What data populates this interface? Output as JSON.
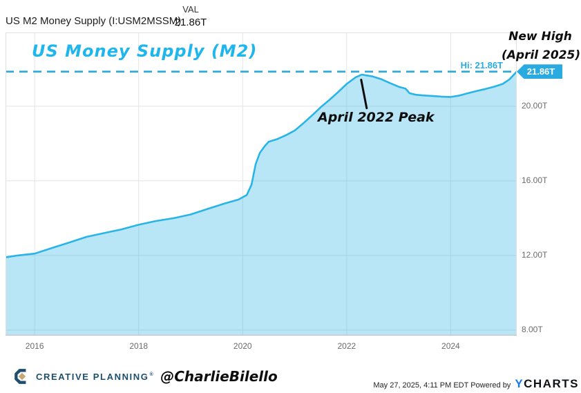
{
  "header": {
    "series_name": "US M2 Money Supply (I:USM2MSSM)",
    "val_label": "VAL",
    "val_value": "21.86T"
  },
  "annotations": {
    "title": "US Money Supply (M2)",
    "new_high_line1": "New High",
    "new_high_line2": "(April 2025)",
    "peak_label": "April 2022 Peak",
    "hi_label": "Hi: 21.86T",
    "hi_badge": "21.86T"
  },
  "footer": {
    "brand": "CREATIVE PLANNING",
    "trademark": "®",
    "handle": "@CharlieBilello",
    "timestamp": "May 27, 2025, 4:11 PM EDT",
    "powered_by": "Powered by",
    "ycharts_y": "Y",
    "ycharts_rest": "CHARTS",
    "logo_icon": "creative-planning-c-diamond"
  },
  "colors": {
    "accent_cyan": "#29b4e8",
    "title_cyan": "#1fb6ed",
    "badge_bg": "#29abe2",
    "area_fill": "rgba(41,180,232,0.33)",
    "grid": "#e4e4e4",
    "plot_border": "#e0e0e0",
    "plot_border_bottom": "#c6c6c6",
    "axis_text": "#6b6b6b",
    "brand_navy": "#1d4e6e",
    "brand_gold": "#c3a878",
    "ycharts_blue": "#1479e8"
  },
  "chart_data": {
    "type": "area",
    "title": "US Money Supply (M2)",
    "series_name": "US M2 Money Supply",
    "unit": "trillions USD",
    "x_ticks": [
      2016,
      2018,
      2020,
      2022,
      2024
    ],
    "y_ticks": [
      {
        "value": 20,
        "label": "20.00T"
      },
      {
        "value": 16,
        "label": "16.00T"
      },
      {
        "value": 12,
        "label": "12.00T"
      },
      {
        "value": 8,
        "label": "8.00T"
      }
    ],
    "x_range": [
      2015.44,
      2025.27
    ],
    "y_range": [
      7.7,
      23.96
    ],
    "grid": true,
    "legend": false,
    "hi_line": {
      "value": 21.86,
      "label": "Hi: 21.86T",
      "style": "dashed"
    },
    "peak": {
      "x": 2022.29,
      "value": 21.7
    },
    "latest": {
      "x": 2025.27,
      "value": 21.86
    },
    "points": [
      [
        2015.44,
        11.9
      ],
      [
        2015.67,
        12.0
      ],
      [
        2016.0,
        12.1
      ],
      [
        2016.33,
        12.4
      ],
      [
        2016.67,
        12.7
      ],
      [
        2017.0,
        13.0
      ],
      [
        2017.33,
        13.2
      ],
      [
        2017.67,
        13.4
      ],
      [
        2018.0,
        13.65
      ],
      [
        2018.33,
        13.85
      ],
      [
        2018.67,
        14.0
      ],
      [
        2019.0,
        14.2
      ],
      [
        2019.33,
        14.5
      ],
      [
        2019.67,
        14.8
      ],
      [
        2019.92,
        15.0
      ],
      [
        2020.08,
        15.25
      ],
      [
        2020.17,
        15.8
      ],
      [
        2020.25,
        16.9
      ],
      [
        2020.33,
        17.5
      ],
      [
        2020.42,
        17.85
      ],
      [
        2020.5,
        18.1
      ],
      [
        2020.67,
        18.25
      ],
      [
        2020.83,
        18.45
      ],
      [
        2021.0,
        18.7
      ],
      [
        2021.17,
        19.1
      ],
      [
        2021.33,
        19.5
      ],
      [
        2021.5,
        19.95
      ],
      [
        2021.67,
        20.35
      ],
      [
        2021.83,
        20.75
      ],
      [
        2022.0,
        21.2
      ],
      [
        2022.17,
        21.55
      ],
      [
        2022.29,
        21.7
      ],
      [
        2022.5,
        21.6
      ],
      [
        2022.67,
        21.45
      ],
      [
        2022.83,
        21.25
      ],
      [
        2023.0,
        21.05
      ],
      [
        2023.13,
        20.95
      ],
      [
        2023.21,
        20.7
      ],
      [
        2023.33,
        20.62
      ],
      [
        2023.5,
        20.58
      ],
      [
        2023.67,
        20.55
      ],
      [
        2023.83,
        20.52
      ],
      [
        2024.0,
        20.5
      ],
      [
        2024.17,
        20.58
      ],
      [
        2024.33,
        20.7
      ],
      [
        2024.5,
        20.82
      ],
      [
        2024.67,
        20.93
      ],
      [
        2024.83,
        21.05
      ],
      [
        2025.0,
        21.2
      ],
      [
        2025.13,
        21.45
      ],
      [
        2025.27,
        21.86
      ]
    ]
  }
}
